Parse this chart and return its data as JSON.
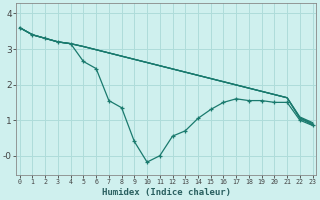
{
  "xlabel": "Humidex (Indice chaleur)",
  "bg_color": "#cff0ee",
  "grid_color": "#aedcda",
  "line_color": "#1a7a6e",
  "x_values": [
    0,
    1,
    2,
    3,
    4,
    5,
    6,
    7,
    8,
    9,
    10,
    11,
    12,
    13,
    14,
    15,
    16,
    17,
    18,
    19,
    20,
    21,
    22,
    23
  ],
  "jagged": [
    3.6,
    3.4,
    3.3,
    3.2,
    3.15,
    2.65,
    2.45,
    1.55,
    1.35,
    0.4,
    -0.18,
    0.0,
    0.55,
    0.7,
    1.05,
    1.3,
    1.5,
    1.6,
    1.55,
    1.55,
    1.5,
    1.5,
    1.0,
    0.85
  ],
  "straight1": [
    3.6,
    3.4,
    3.3,
    3.2,
    3.15,
    3.07,
    2.98,
    2.89,
    2.8,
    2.71,
    2.62,
    2.53,
    2.44,
    2.35,
    2.26,
    2.17,
    2.08,
    1.99,
    1.9,
    1.81,
    1.72,
    1.63,
    1.05,
    0.87
  ],
  "straight2": [
    3.6,
    3.4,
    3.3,
    3.2,
    3.15,
    3.07,
    2.98,
    2.89,
    2.8,
    2.71,
    2.62,
    2.53,
    2.44,
    2.35,
    2.26,
    2.17,
    2.08,
    1.99,
    1.9,
    1.81,
    1.72,
    1.63,
    1.07,
    0.9
  ],
  "straight3": [
    3.6,
    3.4,
    3.3,
    3.2,
    3.15,
    3.07,
    2.98,
    2.89,
    2.8,
    2.71,
    2.62,
    2.53,
    2.44,
    2.35,
    2.26,
    2.17,
    2.08,
    1.99,
    1.9,
    1.81,
    1.72,
    1.63,
    1.09,
    0.93
  ],
  "ylim": [
    -0.55,
    4.3
  ],
  "xlim": [
    -0.3,
    23.3
  ]
}
